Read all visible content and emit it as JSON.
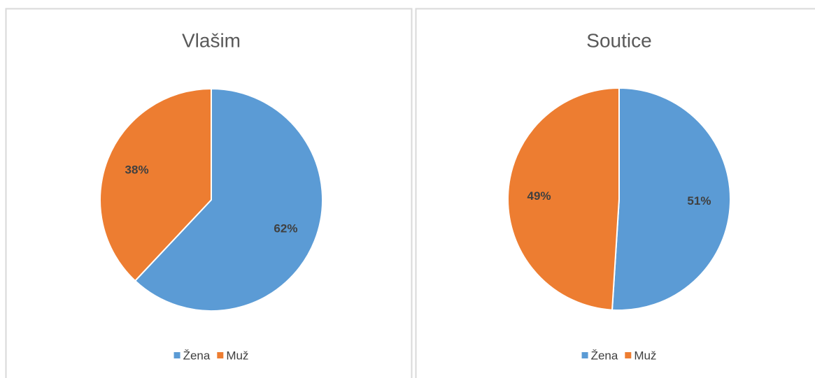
{
  "chart_data": [
    {
      "type": "pie",
      "title": "Vlašim",
      "categories": [
        "Žena",
        "Muž"
      ],
      "values": [
        62,
        38
      ],
      "value_labels": [
        "62%",
        "38%"
      ],
      "colors": [
        "#5b9bd5",
        "#ed7d31"
      ],
      "legend": "bottom"
    },
    {
      "type": "pie",
      "title": "Soutice",
      "categories": [
        "Žena",
        "Muž"
      ],
      "values": [
        51,
        49
      ],
      "value_labels": [
        "51%",
        "49%"
      ],
      "colors": [
        "#5b9bd5",
        "#ed7d31"
      ],
      "legend": "bottom"
    }
  ]
}
